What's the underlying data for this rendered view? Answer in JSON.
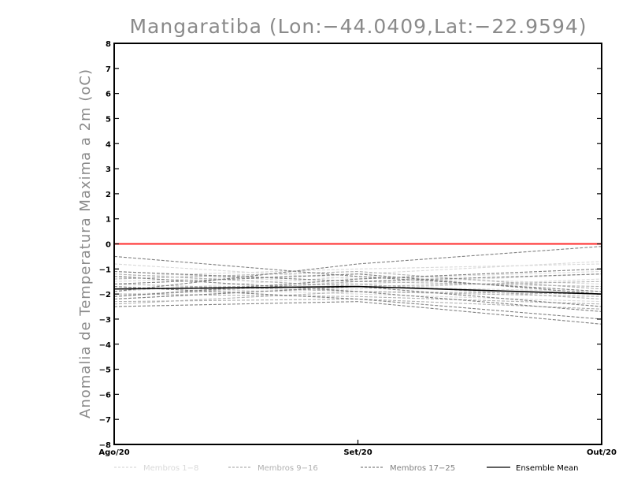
{
  "chart_data": {
    "type": "line",
    "title": "Mangaratiba (Lon:−44.0409,Lat:−22.9594)",
    "xlabel": "",
    "ylabel": "Anomalia de Temperatura Maxima a 2m (oC)",
    "categories": [
      "Ago/20",
      "Set/20",
      "Out/20"
    ],
    "ylim": [
      -8,
      8
    ],
    "yticks": [
      -8,
      -7,
      -6,
      -5,
      -4,
      -3,
      -2,
      -1,
      0,
      1,
      2,
      3,
      4,
      5,
      6,
      7,
      8
    ],
    "ytick_labels": [
      "−8",
      "−7",
      "−6",
      "−5",
      "−4",
      "−3",
      "−2",
      "−1",
      "0",
      "1",
      "2",
      "3",
      "4",
      "5",
      "6",
      "7",
      "8"
    ],
    "reference_line": {
      "y": 0,
      "color": "#ff2a2a"
    },
    "legend": [
      {
        "label": "Membros 1−8",
        "color": "#d9d9d9",
        "dash": "dashed"
      },
      {
        "label": "Membros 9−16",
        "color": "#b0b0b0",
        "dash": "dashed"
      },
      {
        "label": "Membros 17−25",
        "color": "#808080",
        "dash": "dashed"
      },
      {
        "label": "Ensemble Mean",
        "color": "#000000",
        "dash": "solid"
      }
    ],
    "series": [
      {
        "name": "Membro 1",
        "group": 0,
        "values": [
          -1.5,
          -1.2,
          -0.7
        ]
      },
      {
        "name": "Membro 2",
        "group": 0,
        "values": [
          -0.8,
          -1.4,
          -1.1
        ]
      },
      {
        "name": "Membro 3",
        "group": 0,
        "values": [
          -2.0,
          -1.8,
          -1.4
        ]
      },
      {
        "name": "Membro 4",
        "group": 0,
        "values": [
          -1.3,
          -1.0,
          -0.8
        ]
      },
      {
        "name": "Membro 5",
        "group": 0,
        "values": [
          -1.7,
          -2.0,
          -2.3
        ]
      },
      {
        "name": "Membro 6",
        "group": 0,
        "values": [
          -2.2,
          -1.7,
          -1.9
        ]
      },
      {
        "name": "Membro 7",
        "group": 0,
        "values": [
          -1.1,
          -1.6,
          -1.2
        ]
      },
      {
        "name": "Membro 8",
        "group": 0,
        "values": [
          -1.9,
          -1.3,
          -1.6
        ]
      },
      {
        "name": "Membro 9",
        "group": 1,
        "values": [
          -2.3,
          -2.2,
          -2.6
        ]
      },
      {
        "name": "Membro 10",
        "group": 1,
        "values": [
          -1.6,
          -1.9,
          -2.0
        ]
      },
      {
        "name": "Membro 11",
        "group": 1,
        "values": [
          -2.1,
          -1.5,
          -1.7
        ]
      },
      {
        "name": "Membro 12",
        "group": 1,
        "values": [
          -1.4,
          -1.1,
          -1.8
        ]
      },
      {
        "name": "Membro 13",
        "group": 1,
        "values": [
          -2.0,
          -2.1,
          -2.4
        ]
      },
      {
        "name": "Membro 14",
        "group": 1,
        "values": [
          -1.8,
          -1.6,
          -2.2
        ]
      },
      {
        "name": "Membro 15",
        "group": 1,
        "values": [
          -2.4,
          -1.9,
          -2.1
        ]
      },
      {
        "name": "Membro 16",
        "group": 1,
        "values": [
          -1.2,
          -1.7,
          -1.5
        ]
      },
      {
        "name": "Membro 17",
        "group": 2,
        "values": [
          -0.5,
          -1.3,
          -1.9
        ]
      },
      {
        "name": "Membro 18",
        "group": 2,
        "values": [
          -1.9,
          -0.8,
          -0.1
        ]
      },
      {
        "name": "Membro 19",
        "group": 2,
        "values": [
          -2.5,
          -2.3,
          -3.2
        ]
      },
      {
        "name": "Membro 20",
        "group": 2,
        "values": [
          -1.3,
          -1.9,
          -2.7
        ]
      },
      {
        "name": "Membro 21",
        "group": 2,
        "values": [
          -2.1,
          -1.4,
          -1.0
        ]
      },
      {
        "name": "Membro 22",
        "group": 2,
        "values": [
          -1.7,
          -2.2,
          -3.0
        ]
      },
      {
        "name": "Membro 23",
        "group": 2,
        "values": [
          -1.1,
          -1.5,
          -1.2
        ]
      },
      {
        "name": "Membro 24",
        "group": 2,
        "values": [
          -2.2,
          -1.7,
          -2.5
        ]
      },
      {
        "name": "Membro 25",
        "group": 2,
        "values": [
          -1.6,
          -1.2,
          -2.0
        ]
      },
      {
        "name": "Ensemble Mean",
        "group": 3,
        "values": [
          -1.8,
          -1.7,
          -2.0
        ]
      }
    ]
  }
}
